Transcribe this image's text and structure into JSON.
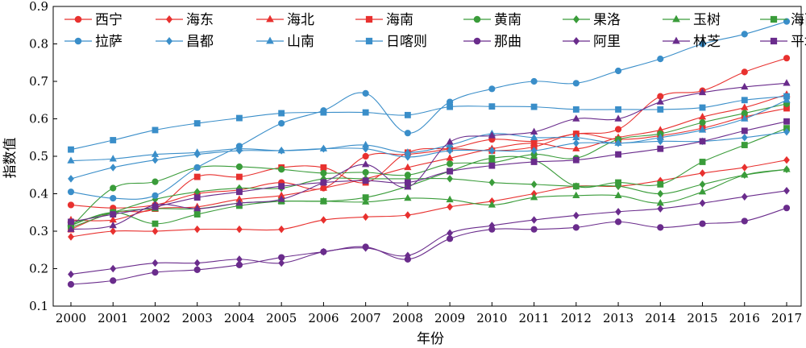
{
  "chart_data": {
    "type": "line",
    "xlabel": "年份",
    "ylabel": "指数值",
    "xlim": [
      2000,
      2017
    ],
    "ylim": [
      0.1,
      0.9
    ],
    "yticks": [
      "0.1",
      "0.2",
      "0.3",
      "0.4",
      "0.5",
      "0.6",
      "0.7",
      "0.8",
      "0.9"
    ],
    "x": [
      2000,
      2001,
      2002,
      2003,
      2004,
      2005,
      2006,
      2007,
      2008,
      2009,
      2010,
      2011,
      2012,
      2013,
      2014,
      2015,
      2016,
      2017
    ],
    "xticks": [
      "2000",
      "2001",
      "2002",
      "2003",
      "2004",
      "2005",
      "2006",
      "2007",
      "2008",
      "2009",
      "2010",
      "2011",
      "2012",
      "2013",
      "2014",
      "2015",
      "2016",
      "2017"
    ],
    "grid": false,
    "legend_position": "top-left",
    "series": [
      {
        "name": "西宁",
        "color": "#e8312f",
        "marker": "circle",
        "values": [
          0.37,
          0.362,
          0.37,
          0.4,
          0.41,
          0.43,
          0.415,
          0.5,
          0.505,
          0.52,
          0.545,
          0.54,
          0.56,
          0.572,
          0.66,
          0.675,
          0.725,
          0.762
        ]
      },
      {
        "name": "海东",
        "color": "#e8312f",
        "marker": "diamond",
        "values": [
          0.285,
          0.3,
          0.3,
          0.305,
          0.305,
          0.305,
          0.33,
          0.338,
          0.343,
          0.365,
          0.38,
          0.4,
          0.42,
          0.42,
          0.435,
          0.455,
          0.47,
          0.49
        ]
      },
      {
        "name": "海北",
        "color": "#e8312f",
        "marker": "triangle",
        "values": [
          0.33,
          0.33,
          0.36,
          0.365,
          0.385,
          0.395,
          0.415,
          0.44,
          0.47,
          0.495,
          0.52,
          0.535,
          0.52,
          0.55,
          0.57,
          0.605,
          0.63,
          0.665
        ]
      },
      {
        "name": "海南",
        "color": "#e8312f",
        "marker": "square",
        "values": [
          0.305,
          0.35,
          0.36,
          0.445,
          0.445,
          0.47,
          0.47,
          0.43,
          0.51,
          0.52,
          0.515,
          0.525,
          0.56,
          0.545,
          0.555,
          0.575,
          0.605,
          0.628
        ]
      },
      {
        "name": "黄南",
        "color": "#3a9c3a",
        "marker": "circle",
        "values": [
          0.31,
          0.415,
          0.432,
          0.47,
          0.472,
          0.465,
          0.455,
          0.457,
          0.45,
          0.48,
          0.483,
          0.505,
          0.495,
          0.545,
          0.56,
          0.59,
          0.615,
          0.64
        ]
      },
      {
        "name": "果洛",
        "color": "#3a9c3a",
        "marker": "diamond",
        "values": [
          0.31,
          0.35,
          0.385,
          0.405,
          0.415,
          0.415,
          0.44,
          0.44,
          0.44,
          0.44,
          0.43,
          0.425,
          0.42,
          0.42,
          0.4,
          0.425,
          0.45,
          0.465
        ]
      },
      {
        "name": "玉树",
        "color": "#3a9c3a",
        "marker": "triangle",
        "values": [
          0.32,
          0.35,
          0.36,
          0.36,
          0.375,
          0.38,
          0.38,
          0.378,
          0.388,
          0.384,
          0.37,
          0.39,
          0.395,
          0.395,
          0.375,
          0.405,
          0.45,
          0.465
        ]
      },
      {
        "name": "海西",
        "color": "#3a9c3a",
        "marker": "square",
        "values": [
          0.315,
          0.35,
          0.32,
          0.345,
          0.368,
          0.38,
          0.38,
          0.39,
          0.42,
          0.46,
          0.495,
          0.49,
          0.42,
          0.43,
          0.425,
          0.485,
          0.53,
          0.575
        ]
      },
      {
        "name": "拉萨",
        "color": "#3a8ec9",
        "marker": "circle",
        "values": [
          0.405,
          0.388,
          0.395,
          0.47,
          0.527,
          0.588,
          0.622,
          0.668,
          0.562,
          0.645,
          0.68,
          0.7,
          0.695,
          0.728,
          0.76,
          0.8,
          0.826,
          0.86
        ]
      },
      {
        "name": "昌都",
        "color": "#3a8ec9",
        "marker": "diamond",
        "values": [
          0.44,
          0.47,
          0.49,
          0.505,
          0.515,
          0.515,
          0.52,
          0.52,
          0.498,
          0.515,
          0.515,
          0.515,
          0.535,
          0.535,
          0.54,
          0.54,
          0.55,
          0.565
        ]
      },
      {
        "name": "山南",
        "color": "#3a8ec9",
        "marker": "triangle",
        "values": [
          0.488,
          0.493,
          0.505,
          0.51,
          0.52,
          0.515,
          0.52,
          0.53,
          0.51,
          0.53,
          0.56,
          0.55,
          0.55,
          0.535,
          0.55,
          0.57,
          0.6,
          0.65
        ]
      },
      {
        "name": "日喀则",
        "color": "#3a8ec9",
        "marker": "square",
        "values": [
          0.518,
          0.543,
          0.57,
          0.588,
          0.602,
          0.615,
          0.617,
          0.617,
          0.61,
          0.632,
          0.633,
          0.632,
          0.625,
          0.625,
          0.625,
          0.63,
          0.65,
          0.66
        ]
      },
      {
        "name": "那曲",
        "color": "#6a2c8c",
        "marker": "circle",
        "values": [
          0.158,
          0.168,
          0.19,
          0.197,
          0.21,
          0.23,
          0.245,
          0.258,
          0.225,
          0.28,
          0.305,
          0.305,
          0.31,
          0.325,
          0.31,
          0.32,
          0.327,
          0.362
        ]
      },
      {
        "name": "阿里",
        "color": "#6a2c8c",
        "marker": "diamond",
        "values": [
          0.185,
          0.2,
          0.215,
          0.215,
          0.225,
          0.215,
          0.245,
          0.255,
          0.235,
          0.295,
          0.315,
          0.33,
          0.342,
          0.352,
          0.36,
          0.375,
          0.392,
          0.408
        ]
      },
      {
        "name": "林芝",
        "color": "#6a2c8c",
        "marker": "triangle",
        "values": [
          0.305,
          0.315,
          0.37,
          0.36,
          0.375,
          0.385,
          0.43,
          0.478,
          0.418,
          0.538,
          0.555,
          0.565,
          0.6,
          0.6,
          0.645,
          0.67,
          0.685,
          0.695
        ]
      },
      {
        "name": "平均值",
        "color": "#6a2c8c",
        "marker": "square",
        "values": [
          0.325,
          0.345,
          0.365,
          0.39,
          0.405,
          0.42,
          0.43,
          0.435,
          0.43,
          0.46,
          0.475,
          0.485,
          0.49,
          0.505,
          0.52,
          0.54,
          0.568,
          0.593
        ]
      }
    ]
  }
}
